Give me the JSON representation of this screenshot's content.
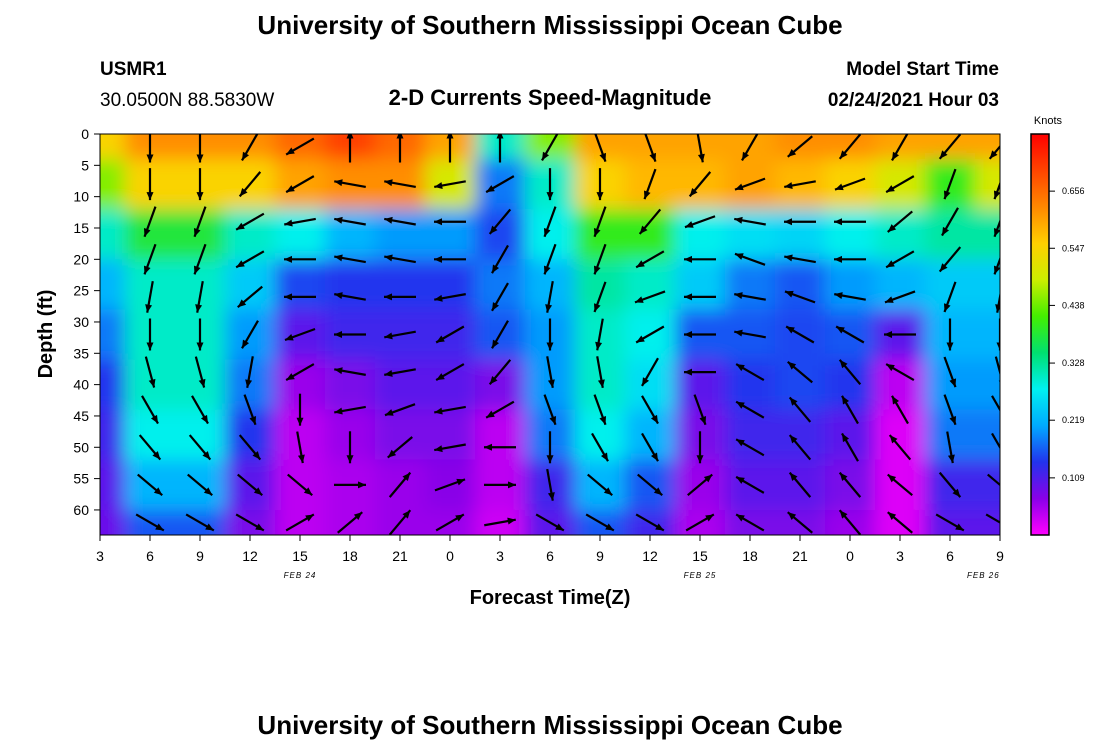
{
  "header": {
    "title": "University of Southern Mississippi Ocean Cube",
    "station": "USMR1",
    "coords": "30.0500N 88.5830W",
    "plot_title": "2-D Currents Speed-Magnitude",
    "model_label": "Model Start Time",
    "model_time": "02/24/2021 Hour 03"
  },
  "footer": {
    "title": "University of Southern Mississippi Ocean Cube"
  },
  "colorbar": {
    "title": "Knots",
    "ticks": [
      "0.656",
      "0.547",
      "0.438",
      "0.328",
      "0.219",
      "0.109"
    ],
    "tick_values": [
      0.656,
      0.547,
      0.438,
      0.328,
      0.219,
      0.109
    ],
    "range": [
      0.0,
      0.765
    ],
    "colors": [
      "#ff00ff",
      "#8a00e8",
      "#2233ee",
      "#00aaff",
      "#00f0f0",
      "#00e070",
      "#44ee00",
      "#ccee00",
      "#ffd000",
      "#ff8800",
      "#ff4400",
      "#ff0000"
    ]
  },
  "chart_data": {
    "type": "heatmap",
    "title": "2-D Currents Speed-Magnitude",
    "xlabel": "Forecast Time(Z)",
    "ylabel": "Depth (ft)",
    "units": "Knots",
    "x_ticks": [
      "3",
      "6",
      "9",
      "12",
      "15",
      "18",
      "21",
      "0",
      "3",
      "6",
      "9",
      "12",
      "15",
      "18",
      "21",
      "0",
      "3",
      "6",
      "9"
    ],
    "x_range_hours": [
      0,
      54
    ],
    "date_labels": [
      {
        "text": "FEB 24",
        "at_hour": 12
      },
      {
        "text": "FEB 25",
        "at_hour": 36
      },
      {
        "text": "FEB 26",
        "at_hour": 53
      }
    ],
    "y_ticks": [
      "0",
      "5",
      "10",
      "15",
      "20",
      "25",
      "30",
      "35",
      "40",
      "45",
      "50",
      "55",
      "60"
    ],
    "ylim": [
      0,
      64
    ],
    "y_inverted": true,
    "grid": false,
    "legend": "colorbar-right",
    "speed_columns_hours": [
      0,
      3,
      6,
      9,
      12,
      15,
      18,
      21,
      24,
      27,
      30,
      33,
      36,
      39,
      42,
      45,
      48,
      51,
      54
    ],
    "speed_rows_depth_ft": [
      0,
      8,
      16,
      24,
      32,
      40,
      48,
      56,
      64
    ],
    "speed_knots": [
      [
        0.55,
        0.62,
        0.62,
        0.62,
        0.66,
        0.7,
        0.66,
        0.6,
        0.3,
        0.45,
        0.6,
        0.6,
        0.6,
        0.6,
        0.62,
        0.62,
        0.6,
        0.6,
        0.6
      ],
      [
        0.45,
        0.55,
        0.55,
        0.55,
        0.6,
        0.62,
        0.62,
        0.5,
        0.18,
        0.3,
        0.55,
        0.58,
        0.58,
        0.6,
        0.58,
        0.55,
        0.5,
        0.4,
        0.5
      ],
      [
        0.3,
        0.38,
        0.38,
        0.3,
        0.28,
        0.22,
        0.2,
        0.2,
        0.15,
        0.28,
        0.4,
        0.4,
        0.28,
        0.26,
        0.25,
        0.28,
        0.3,
        0.32,
        0.32
      ],
      [
        0.22,
        0.3,
        0.3,
        0.24,
        0.15,
        0.14,
        0.14,
        0.14,
        0.18,
        0.22,
        0.32,
        0.3,
        0.24,
        0.18,
        0.16,
        0.2,
        0.22,
        0.24,
        0.24
      ],
      [
        0.18,
        0.3,
        0.3,
        0.2,
        0.1,
        0.12,
        0.12,
        0.12,
        0.16,
        0.2,
        0.3,
        0.28,
        0.16,
        0.16,
        0.15,
        0.16,
        0.1,
        0.22,
        0.22
      ],
      [
        0.14,
        0.3,
        0.3,
        0.18,
        0.06,
        0.08,
        0.1,
        0.1,
        0.08,
        0.2,
        0.3,
        0.26,
        0.1,
        0.14,
        0.15,
        0.14,
        0.04,
        0.2,
        0.2
      ],
      [
        0.12,
        0.28,
        0.28,
        0.14,
        0.04,
        0.06,
        0.08,
        0.08,
        0.04,
        0.18,
        0.28,
        0.22,
        0.08,
        0.12,
        0.12,
        0.1,
        0.02,
        0.18,
        0.18
      ],
      [
        0.1,
        0.22,
        0.22,
        0.1,
        0.04,
        0.05,
        0.06,
        0.07,
        0.04,
        0.12,
        0.22,
        0.16,
        0.06,
        0.1,
        0.1,
        0.08,
        0.02,
        0.12,
        0.12
      ],
      [
        0.09,
        0.16,
        0.16,
        0.08,
        0.04,
        0.05,
        0.06,
        0.06,
        0.03,
        0.1,
        0.16,
        0.12,
        0.05,
        0.08,
        0.08,
        0.06,
        0.02,
        0.1,
        0.1
      ]
    ],
    "vector_columns_hours": [
      3,
      6,
      9,
      12,
      15,
      18,
      21,
      24,
      27,
      30,
      33,
      36,
      39,
      42,
      45,
      48,
      51,
      54
    ],
    "vector_rows_depth_ft": [
      2,
      8,
      14,
      20,
      26,
      32,
      38,
      44,
      50,
      56,
      62
    ],
    "vector_direction_deg": [
      [
        180,
        180,
        210,
        240,
        0,
        0,
        0,
        0,
        210,
        160,
        160,
        170,
        210,
        230,
        220,
        210,
        220,
        220
      ],
      [
        180,
        180,
        220,
        240,
        280,
        280,
        260,
        240,
        180,
        180,
        200,
        220,
        250,
        260,
        250,
        240,
        200,
        200
      ],
      [
        200,
        200,
        240,
        260,
        280,
        280,
        270,
        220,
        200,
        200,
        220,
        250,
        280,
        270,
        270,
        230,
        210,
        200
      ],
      [
        200,
        200,
        240,
        270,
        280,
        280,
        270,
        210,
        200,
        200,
        240,
        270,
        290,
        280,
        270,
        240,
        220,
        200
      ],
      [
        190,
        190,
        230,
        270,
        280,
        270,
        260,
        210,
        190,
        200,
        250,
        270,
        280,
        290,
        280,
        250,
        200,
        190
      ],
      [
        180,
        180,
        210,
        250,
        270,
        260,
        240,
        210,
        180,
        190,
        240,
        270,
        280,
        300,
        300,
        270,
        180,
        180
      ],
      [
        165,
        165,
        190,
        240,
        280,
        260,
        240,
        220,
        170,
        170,
        210,
        270,
        300,
        310,
        320,
        300,
        160,
        165
      ],
      [
        150,
        150,
        160,
        180,
        260,
        250,
        260,
        240,
        160,
        160,
        150,
        160,
        300,
        320,
        330,
        330,
        160,
        150
      ],
      [
        140,
        140,
        140,
        170,
        180,
        230,
        260,
        270,
        180,
        150,
        150,
        180,
        300,
        320,
        330,
        320,
        170,
        150
      ],
      [
        130,
        130,
        130,
        130,
        90,
        40,
        70,
        90,
        170,
        130,
        130,
        50,
        300,
        320,
        320,
        310,
        140,
        130
      ],
      [
        120,
        120,
        120,
        60,
        50,
        40,
        60,
        80,
        120,
        120,
        120,
        60,
        300,
        310,
        320,
        310,
        120,
        120
      ]
    ]
  }
}
